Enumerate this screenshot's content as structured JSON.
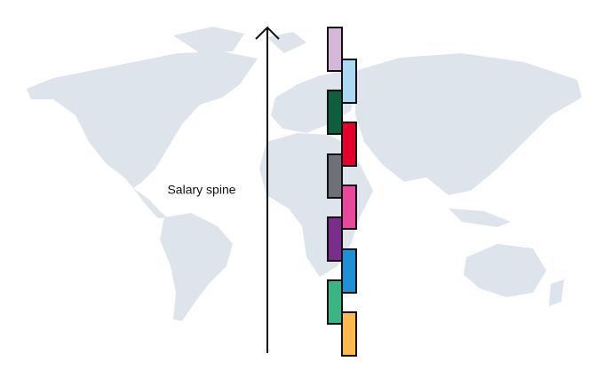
{
  "label": "Salary spine"
}
